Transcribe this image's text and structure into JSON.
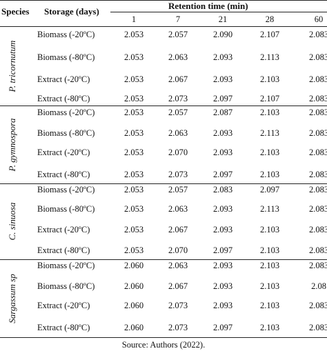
{
  "headers": {
    "species": "Species",
    "storage": "Storage (days)",
    "retention": "Retention time (min)",
    "times": [
      "1",
      "7",
      "21",
      "28",
      "60"
    ]
  },
  "groups": [
    {
      "species": "P. tricornutum",
      "rows": [
        {
          "storage": "Biomass (-20ºC)",
          "values": [
            "2.053",
            "2.057",
            "2.090",
            "2.107",
            "2.083"
          ]
        },
        {
          "storage": "Biomass (-80ºC)",
          "values": [
            "2.053",
            "2.063",
            "2.093",
            "2.113",
            "2.083"
          ]
        },
        {
          "storage": "Extract (-20ºC)",
          "values": [
            "2.053",
            "2.067",
            "2.093",
            "2.103",
            "2.083"
          ]
        },
        {
          "storage": "Extract (-80ºC)",
          "values": [
            "2.053",
            "2.073",
            "2.097",
            "2.107",
            "2.083"
          ]
        }
      ]
    },
    {
      "species": "P. gymnospora",
      "rows": [
        {
          "storage": "Biomass (-20ºC)",
          "values": [
            "2.053",
            "2.057",
            "2.087",
            "2.103",
            "2.083"
          ]
        },
        {
          "storage": "Biomass (-80ºC)",
          "values": [
            "2.053",
            "2.063",
            "2.093",
            "2.113",
            "2.083"
          ]
        },
        {
          "storage": "Extract (-20ºC)",
          "values": [
            "2.053",
            "2.070",
            "2.093",
            "2.103",
            "2.083"
          ]
        },
        {
          "storage": "Extract (-80ºC)",
          "values": [
            "2.053",
            "2.073",
            "2.097",
            "2.103",
            "2.083"
          ]
        }
      ]
    },
    {
      "species": "C. sinuosa",
      "rows": [
        {
          "storage": "Biomass (-20ºC)",
          "values": [
            "2.053",
            "2.057",
            "2.083",
            "2.097",
            "2.083"
          ]
        },
        {
          "storage": "Biomass (-80ºC)",
          "values": [
            "2.053",
            "2.063",
            "2.093",
            "2.113",
            "2.083"
          ]
        },
        {
          "storage": "Extract (-20ºC)",
          "values": [
            "2.053",
            "2.067",
            "2.093",
            "2.103",
            "2.083"
          ]
        },
        {
          "storage": "Extract (-80ºC)",
          "values": [
            "2.053",
            "2.070",
            "2.097",
            "2.103",
            "2.083"
          ]
        }
      ]
    },
    {
      "species": "Sargassum sp",
      "rows": [
        {
          "storage": "Biomass (-20ºC)",
          "values": [
            "2.060",
            "2.063",
            "2.093",
            "2.103",
            "2.083"
          ]
        },
        {
          "storage": "Biomass (-80ºC)",
          "values": [
            "2.060",
            "2.067",
            "2.093",
            "2.103",
            "2.08"
          ]
        },
        {
          "storage": "Extract (-20ºC)",
          "values": [
            "2.060",
            "2.073",
            "2.093",
            "2.103",
            "2.083"
          ]
        },
        {
          "storage": "Extract (-80ºC)",
          "values": [
            "2.060",
            "2.073",
            "2.097",
            "2.103",
            "2.083"
          ]
        }
      ]
    }
  ],
  "source": "Source: Authors (2022)."
}
